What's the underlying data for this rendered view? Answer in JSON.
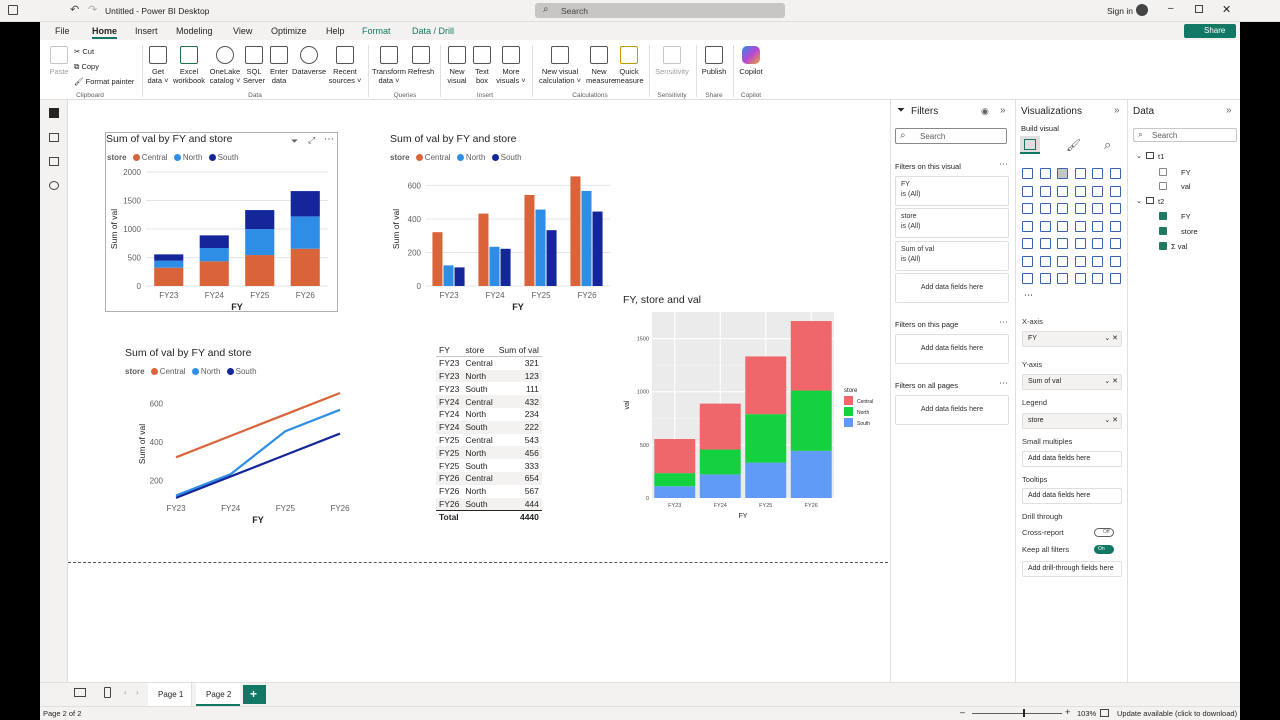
{
  "titlebar": {
    "title": "Untitled - Power BI Desktop",
    "search_placeholder": "Search",
    "signin": "Sign in",
    "share": "Share"
  },
  "menu_tabs": [
    "File",
    "Home",
    "Insert",
    "Modeling",
    "View",
    "Optimize",
    "Help",
    "Format",
    "Data / Drill"
  ],
  "ribbon": {
    "clipboard": {
      "paste": "Paste",
      "cut": "Cut",
      "copy": "Copy",
      "format_painter": "Format painter",
      "group": "Clipboard"
    },
    "data": {
      "get_data": [
        "Get",
        "data ˅"
      ],
      "excel": [
        "Excel",
        "workbook"
      ],
      "onelake": [
        "OneLake",
        "catalog ˅"
      ],
      "sql": [
        "SQL",
        "Server"
      ],
      "enter": [
        "Enter",
        "data"
      ],
      "dataverse": "Dataverse",
      "recent": [
        "Recent",
        "sources ˅"
      ],
      "group": "Data"
    },
    "queries": {
      "transform": [
        "Transform",
        "data ˅"
      ],
      "refresh": "Refresh",
      "group": "Queries"
    },
    "insert": {
      "new_visual": [
        "New",
        "visual"
      ],
      "text_box": [
        "Text",
        "box"
      ],
      "more_visuals": [
        "More",
        "visuals ˅"
      ],
      "group": "Insert"
    },
    "calculations": {
      "new_visual_calc": [
        "New visual",
        "calculation ˅"
      ],
      "new_measure": [
        "New",
        "measure"
      ],
      "quick_measure": [
        "Quick",
        "measure"
      ],
      "group": "Calculations"
    },
    "sensitivity": {
      "label": "Sensitivity",
      "group": "Sensitivity"
    },
    "share": {
      "publish": "Publish",
      "group": "Share"
    },
    "copilot": {
      "label": "Copilot",
      "group": "Copilot"
    }
  },
  "filters": {
    "title": "Filters",
    "on_visual": "Filters on this visual",
    "cards": [
      {
        "field": "FY",
        "value": "is (All)"
      },
      {
        "field": "store",
        "value": "is (All)"
      },
      {
        "field": "Sum of val",
        "value": "is (All)"
      }
    ],
    "add_fields": "Add data fields here",
    "on_page": "Filters on this page",
    "on_all_pages": "Filters on all pages",
    "search": "Search"
  },
  "visualizations": {
    "title": "Visualizations",
    "build_visual": "Build visual",
    "xaxis_label": "X-axis",
    "xaxis_value": "FY",
    "yaxis_label": "Y-axis",
    "yaxis_value": "Sum of val",
    "legend_label": "Legend",
    "legend_value": "store",
    "small_multiples": "Small multiples",
    "tooltips": "Tooltips",
    "add_fields": "Add data fields here",
    "drill_through": "Drill through",
    "cross_report": "Cross-report",
    "cross_report_state": "Off",
    "keep_filters": "Keep all filters",
    "keep_filters_state": "On",
    "add_drill": "Add drill-through fields here"
  },
  "datapane": {
    "title": "Data",
    "search": "Search",
    "tables": [
      {
        "name": "t1",
        "fields": [
          {
            "name": "FY",
            "checked": false
          },
          {
            "name": "val",
            "checked": false
          }
        ]
      },
      {
        "name": "t2",
        "fields": [
          {
            "name": "FY",
            "checked": true
          },
          {
            "name": "store",
            "checked": true
          },
          {
            "name": "Σ val",
            "checked": true
          }
        ]
      }
    ]
  },
  "pages": {
    "tabs": [
      "Page 1",
      "Page 2"
    ],
    "add": "+"
  },
  "status": {
    "page": "Page 2 of 2",
    "zoom": "103%",
    "update": "Update available (click to download)"
  },
  "colors": {
    "central": "#d9643a",
    "north": "#2e8ee6",
    "south": "#14269a",
    "gg_central": "#f0676b",
    "gg_north": "#13d13f",
    "gg_south": "#619bf8"
  },
  "chart_data": [
    {
      "type": "bar",
      "stacked": true,
      "title": "Sum of val by FY and store",
      "legend_title": "store",
      "categories": [
        "FY23",
        "FY24",
        "FY25",
        "FY26"
      ],
      "series": [
        {
          "name": "Central",
          "values": [
            321,
            432,
            543,
            654
          ]
        },
        {
          "name": "North",
          "values": [
            123,
            234,
            456,
            567
          ]
        },
        {
          "name": "South",
          "values": [
            111,
            222,
            333,
            444
          ]
        }
      ],
      "xlabel": "FY",
      "ylabel": "Sum of val",
      "ylim": [
        0,
        2000
      ],
      "yticks": [
        "0",
        "500",
        "1000",
        "1500",
        "2000"
      ]
    },
    {
      "type": "bar",
      "stacked": false,
      "title": "Sum of val by FY and store",
      "legend_title": "store",
      "categories": [
        "FY23",
        "FY24",
        "FY25",
        "FY26"
      ],
      "series": [
        {
          "name": "Central",
          "values": [
            321,
            432,
            543,
            654
          ]
        },
        {
          "name": "North",
          "values": [
            123,
            234,
            456,
            567
          ]
        },
        {
          "name": "South",
          "values": [
            111,
            222,
            333,
            444
          ]
        }
      ],
      "xlabel": "FY",
      "ylabel": "Sum of val",
      "ylim": [
        0,
        680
      ],
      "yticks": [
        "0",
        "200",
        "400",
        "600"
      ]
    },
    {
      "type": "line",
      "title": "Sum of val by FY and store",
      "legend_title": "store",
      "categories": [
        "FY23",
        "FY24",
        "FY25",
        "FY26"
      ],
      "series": [
        {
          "name": "Central",
          "values": [
            321,
            432,
            543,
            654
          ]
        },
        {
          "name": "North",
          "values": [
            123,
            234,
            456,
            567
          ]
        },
        {
          "name": "South",
          "values": [
            111,
            222,
            333,
            444
          ]
        }
      ],
      "xlabel": "FY",
      "ylabel": "Sum of val",
      "ylim": [
        100,
        680
      ],
      "yticks": [
        "200",
        "400",
        "600"
      ]
    },
    {
      "type": "table",
      "columns": [
        "FY",
        "store",
        "Sum of val"
      ],
      "rows": [
        [
          "FY23",
          "Central",
          "321"
        ],
        [
          "FY23",
          "North",
          "123"
        ],
        [
          "FY23",
          "South",
          "111"
        ],
        [
          "FY24",
          "Central",
          "432"
        ],
        [
          "FY24",
          "North",
          "234"
        ],
        [
          "FY24",
          "South",
          "222"
        ],
        [
          "FY25",
          "Central",
          "543"
        ],
        [
          "FY25",
          "North",
          "456"
        ],
        [
          "FY25",
          "South",
          "333"
        ],
        [
          "FY26",
          "Central",
          "654"
        ],
        [
          "FY26",
          "North",
          "567"
        ],
        [
          "FY26",
          "South",
          "444"
        ]
      ],
      "total": [
        "Total",
        "",
        "4440"
      ]
    },
    {
      "type": "bar",
      "stacked": true,
      "title": "FY, store and val",
      "legend_title": "store",
      "categories": [
        "FY23",
        "FY24",
        "FY25",
        "FY26"
      ],
      "series": [
        {
          "name": "Central",
          "values": [
            321,
            432,
            543,
            654
          ]
        },
        {
          "name": "North",
          "values": [
            123,
            234,
            456,
            567
          ]
        },
        {
          "name": "South",
          "values": [
            111,
            222,
            333,
            444
          ]
        }
      ],
      "xlabel": "FY",
      "ylabel": "val",
      "ylim": [
        0,
        1750
      ],
      "yticks": [
        "0",
        "500",
        "1000",
        "1500"
      ]
    }
  ]
}
